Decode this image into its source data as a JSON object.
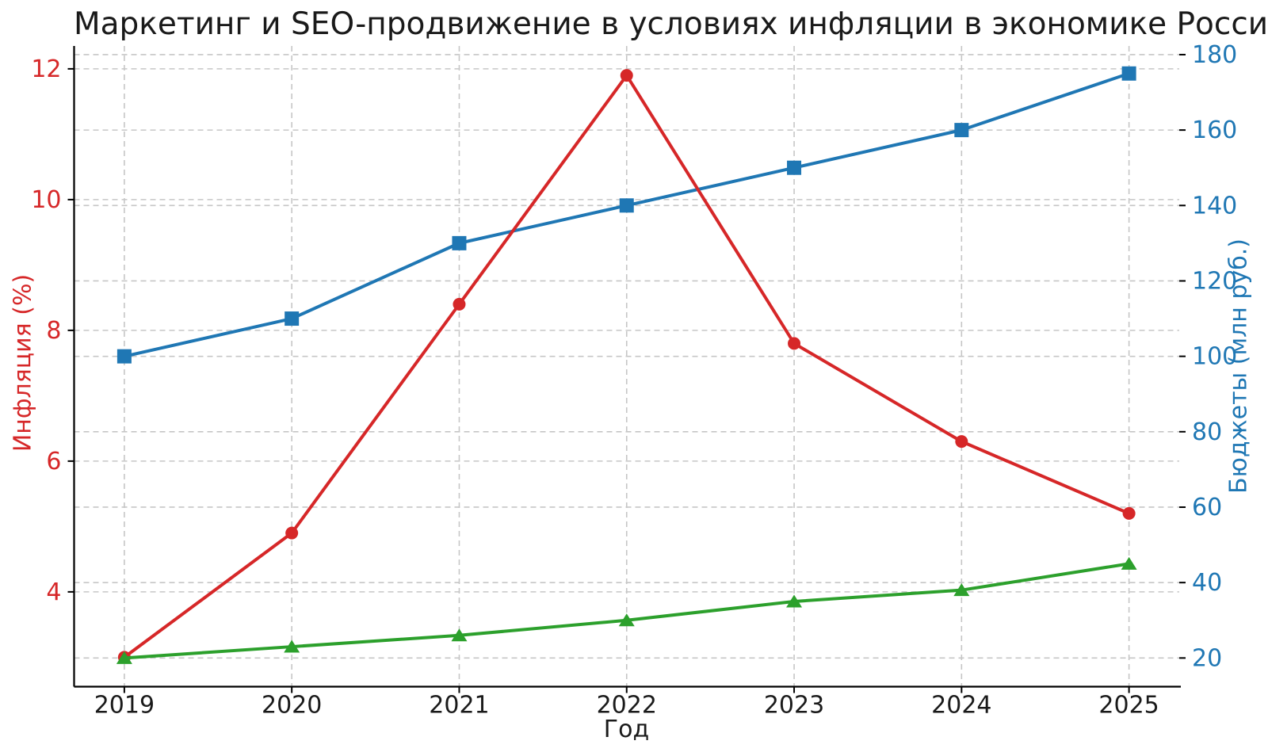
{
  "chart_data": {
    "type": "line",
    "title": "Маркетинг и SEO-продвижение в условиях инфляции в экономике России",
    "xlabel": "Год",
    "ylabel_left": "Инфляция (%)",
    "ylabel_right": "Бюджеты (млн руб.)",
    "x": [
      2019,
      2020,
      2021,
      2022,
      2023,
      2024,
      2025
    ],
    "x_tick_labels": [
      "2019",
      "2020",
      "2021",
      "2022",
      "2023",
      "2024",
      "2025"
    ],
    "xlim": [
      2018.7,
      2025.3
    ],
    "left_axis": {
      "ticks": [
        4,
        6,
        8,
        10,
        12
      ],
      "tick_labels": [
        "4",
        "6",
        "8",
        "10",
        "12"
      ],
      "range": [
        2.55,
        12.35
      ],
      "color": "#d62728"
    },
    "right_axis": {
      "ticks": [
        20,
        40,
        60,
        80,
        100,
        120,
        140,
        160,
        180
      ],
      "tick_labels": [
        "20",
        "40",
        "60",
        "80",
        "100",
        "120",
        "140",
        "160",
        "180"
      ],
      "range": [
        12.4,
        182.3
      ],
      "color": "#1f77b4"
    },
    "series": [
      {
        "id": "budgets",
        "axis": "right",
        "color": "#1f77b4",
        "marker": "square",
        "values": [
          100,
          110,
          130,
          140,
          150,
          160,
          175
        ]
      },
      {
        "id": "inflation",
        "axis": "left",
        "color": "#d62728",
        "marker": "circle",
        "values": [
          3.0,
          4.9,
          8.4,
          11.9,
          7.8,
          6.3,
          5.2
        ]
      },
      {
        "id": "green-series",
        "axis": "right",
        "color": "#2ca02c",
        "marker": "triangle-up",
        "values": [
          20,
          23,
          26,
          30,
          35,
          38,
          45
        ]
      }
    ],
    "grid": true,
    "grid_color": "#c6c6c6",
    "legend": false,
    "text_color": "#1a1a1a"
  }
}
